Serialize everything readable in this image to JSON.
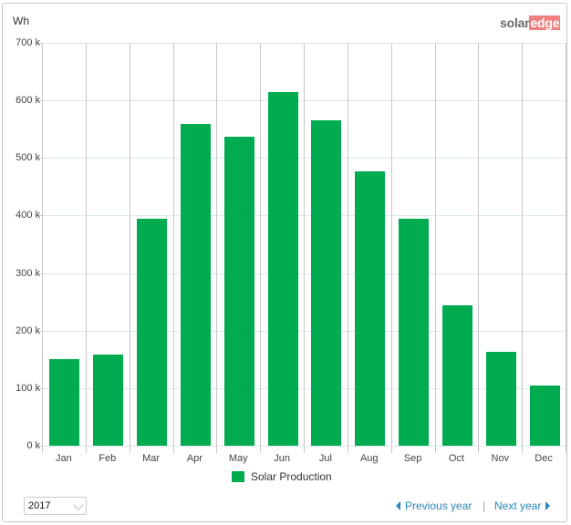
{
  "header": {
    "unit_label": "Wh",
    "logo_part1": "solar",
    "logo_part2": "edge"
  },
  "chart_data": {
    "type": "bar",
    "title": "",
    "xlabel": "",
    "ylabel": "Wh",
    "categories": [
      "Jan",
      "Feb",
      "Mar",
      "Apr",
      "May",
      "Jun",
      "Jul",
      "Aug",
      "Sep",
      "Oct",
      "Nov",
      "Dec"
    ],
    "series": [
      {
        "name": "Solar Production",
        "color": "#00ac4f",
        "values": [
          150000,
          158000,
          394000,
          559000,
          537000,
          615000,
          566000,
          477000,
          394000,
          244000,
          163000,
          105000
        ]
      }
    ],
    "ylim": [
      0,
      700000
    ],
    "yticks": [
      "0 k",
      "100 k",
      "200 k",
      "300 k",
      "400 k",
      "500 k",
      "600 k",
      "700 k"
    ],
    "grid": true,
    "legend_position": "bottom"
  },
  "legend": {
    "label": "Solar Production"
  },
  "controls": {
    "year_select": "2017",
    "previous_year": "Previous year",
    "separator": "|",
    "next_year": "Next year"
  }
}
